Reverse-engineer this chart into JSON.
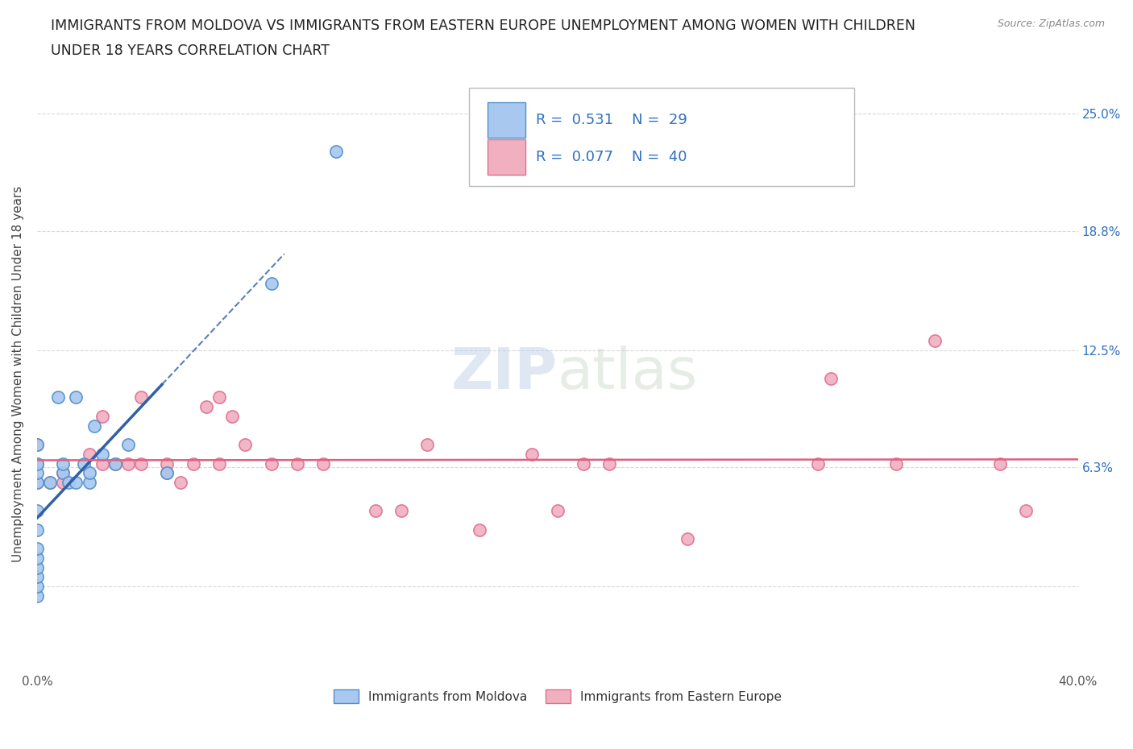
{
  "title_line1": "IMMIGRANTS FROM MOLDOVA VS IMMIGRANTS FROM EASTERN EUROPE UNEMPLOYMENT AMONG WOMEN WITH CHILDREN",
  "title_line2": "UNDER 18 YEARS CORRELATION CHART",
  "source": "Source: ZipAtlas.com",
  "ylabel": "Unemployment Among Women with Children Under 18 years",
  "xlim": [
    0.0,
    0.4
  ],
  "ylim": [
    -0.045,
    0.27
  ],
  "ytick_positions": [
    0.0,
    0.063,
    0.125,
    0.188,
    0.25
  ],
  "ytick_labels": [
    "",
    "6.3%",
    "12.5%",
    "18.8%",
    "25.0%"
  ],
  "R_moldova": 0.531,
  "N_moldova": 29,
  "R_eastern": 0.077,
  "N_eastern": 40,
  "color_moldova_fill": "#a8c8f0",
  "color_moldova_edge": "#5090c8",
  "color_moldova_line": "#3060a8",
  "color_eastern_fill": "#f0b0c0",
  "color_eastern_edge": "#e07090",
  "color_eastern_line": "#e06080",
  "color_r_text": "#3070c0",
  "watermark_text": "ZIPatlas",
  "grid_color": "#d8d8d8",
  "grid_style": "--",
  "background_color": "#ffffff",
  "legend_label_moldova": "Immigrants from Moldova",
  "legend_label_eastern": "Immigrants from Eastern Europe",
  "moldova_scatter_x": [
    0.0,
    0.0,
    0.0,
    0.0,
    0.0,
    0.0,
    0.0,
    0.0,
    0.0,
    0.0,
    0.0,
    0.0,
    0.005,
    0.008,
    0.01,
    0.01,
    0.012,
    0.015,
    0.015,
    0.018,
    0.02,
    0.02,
    0.022,
    0.025,
    0.03,
    0.035,
    0.05,
    0.09,
    0.115
  ],
  "moldova_scatter_y": [
    -0.005,
    0.0,
    0.005,
    0.01,
    0.015,
    0.02,
    0.03,
    0.04,
    0.055,
    0.06,
    0.065,
    0.075,
    0.055,
    0.1,
    0.06,
    0.065,
    0.055,
    0.055,
    0.1,
    0.065,
    0.055,
    0.06,
    0.085,
    0.07,
    0.065,
    0.075,
    0.06,
    0.16,
    0.23
  ],
  "eastern_scatter_x": [
    0.0,
    0.0,
    0.0,
    0.005,
    0.01,
    0.01,
    0.02,
    0.025,
    0.025,
    0.03,
    0.035,
    0.04,
    0.04,
    0.05,
    0.05,
    0.055,
    0.06,
    0.065,
    0.07,
    0.07,
    0.075,
    0.08,
    0.09,
    0.1,
    0.11,
    0.13,
    0.14,
    0.15,
    0.17,
    0.19,
    0.2,
    0.21,
    0.22,
    0.25,
    0.3,
    0.305,
    0.33,
    0.345,
    0.37,
    0.38
  ],
  "eastern_scatter_y": [
    0.055,
    0.065,
    0.075,
    0.055,
    0.055,
    0.06,
    0.07,
    0.065,
    0.09,
    0.065,
    0.065,
    0.065,
    0.1,
    0.06,
    0.065,
    0.055,
    0.065,
    0.095,
    0.065,
    0.1,
    0.09,
    0.075,
    0.065,
    0.065,
    0.065,
    0.04,
    0.04,
    0.075,
    0.03,
    0.07,
    0.04,
    0.065,
    0.065,
    0.025,
    0.065,
    0.11,
    0.065,
    0.13,
    0.065,
    0.04
  ]
}
